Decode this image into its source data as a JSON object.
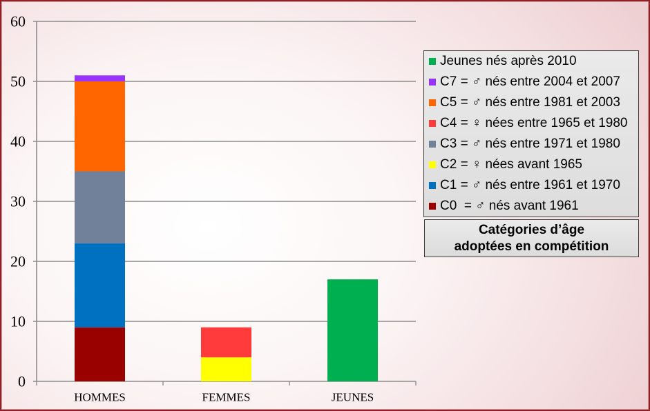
{
  "chart_data": {
    "type": "bar",
    "stacked": true,
    "categories": [
      "HOMMES",
      "FEMMES",
      "JEUNES"
    ],
    "series": [
      {
        "name": "C0  = ♂ nés avant 1961",
        "color": "#990000",
        "values": [
          9,
          0,
          0
        ]
      },
      {
        "name": "C1 = ♂ nés entre 1961 et 1970",
        "color": "#0070c0",
        "values": [
          14,
          0,
          0
        ]
      },
      {
        "name": "C2 = ♀ nées avant 1965",
        "color": "#ffff00",
        "values": [
          0,
          4,
          0
        ]
      },
      {
        "name": "C3 = ♂ nés entre 1971 et 1980",
        "color": "#718199",
        "values": [
          12,
          0,
          0
        ]
      },
      {
        "name": "C4 = ♀ nées entre 1965 et 1980",
        "color": "#ff3b3b",
        "values": [
          0,
          5,
          0
        ]
      },
      {
        "name": "C5 = ♂ nés entre 1981 et 2003",
        "color": "#ff6600",
        "values": [
          15,
          0,
          0
        ]
      },
      {
        "name": "C7 = ♂ nés entre 2004 et 2007",
        "color": "#9933ff",
        "values": [
          1,
          0,
          0
        ]
      },
      {
        "name": "Jeunes nés après 2010",
        "color": "#00b050",
        "values": [
          0,
          0,
          17
        ]
      }
    ],
    "ylim": [
      0,
      60
    ],
    "yticks": [
      0,
      10,
      20,
      30,
      40,
      50,
      60
    ],
    "grid": true,
    "legend_position": "right",
    "legend_title": [
      "Catégories d’âge",
      "adoptées en compétition"
    ]
  }
}
